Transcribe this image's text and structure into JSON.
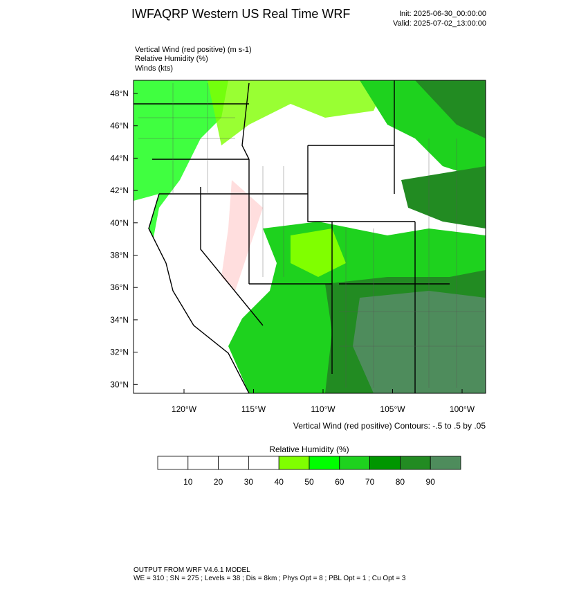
{
  "header": {
    "title": "IWFAQRP Western US Real Time WRF",
    "init": "Init: 2025-06-30_00:00:00",
    "valid": "Valid: 2025-07-02_13:00:00"
  },
  "fields": [
    "Vertical Wind (red positive)   (m s-1)",
    "Relative Humidity   (%)",
    "Winds   (kts)"
  ],
  "map": {
    "lat_labels": [
      "48°N",
      "46°N",
      "44°N",
      "42°N",
      "40°N",
      "38°N",
      "36°N",
      "34°N",
      "32°N",
      "30°N"
    ],
    "lon_labels": [
      "120°W",
      "115°W",
      "110°W",
      "105°W",
      "100°W"
    ],
    "contour_note": "Vertical Wind (red positive) Contours: -.5 to .5 by .05"
  },
  "colorbar": {
    "title": "Relative Humidity   (%)",
    "colors": [
      "#ffffff",
      "#ffffff",
      "#ffffff",
      "#ffffff",
      "#80ff00",
      "#00ff00",
      "#1ed21e",
      "#009600",
      "#228b22",
      "#4e8c5c"
    ],
    "labels": [
      "10",
      "20",
      "30",
      "40",
      "50",
      "60",
      "70",
      "80",
      "90"
    ]
  },
  "footer": [
    "OUTPUT FROM WRF V4.6.1 MODEL",
    "WE = 310 ; SN = 275 ; Levels = 38 ; Dis = 8km ; Phys Opt = 8 ; PBL Opt = 1 ; Cu Opt = 3"
  ]
}
